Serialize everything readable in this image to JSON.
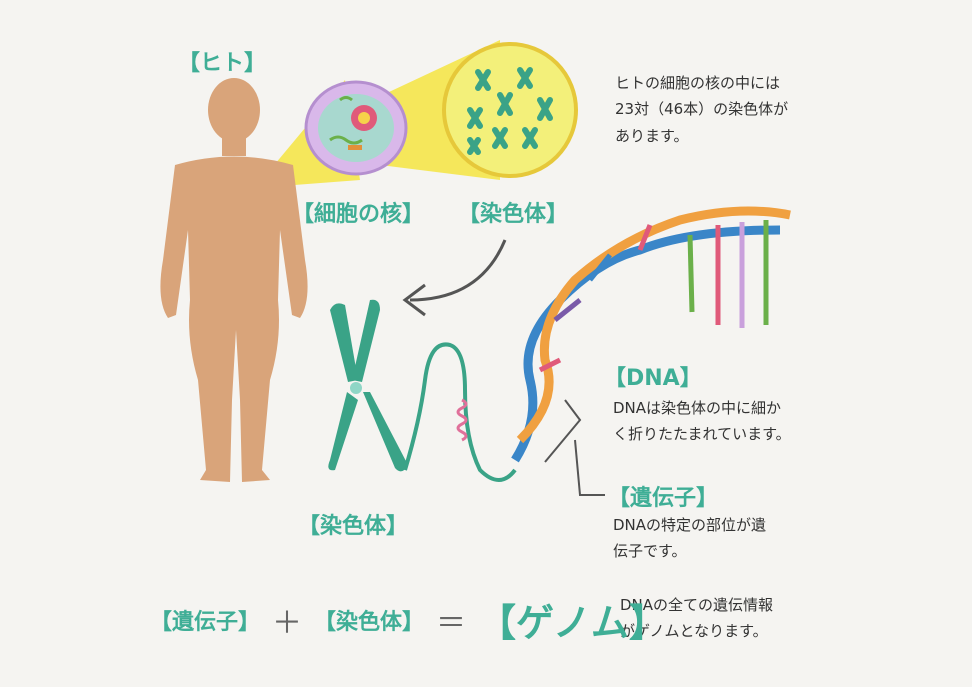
{
  "labels": {
    "human": "【ヒト】",
    "nucleus": "【細胞の核】",
    "chromosome_top": "【染色体】",
    "chromosome_bottom": "【染色体】",
    "dna": "【DNA】",
    "gene": "【遺伝子】"
  },
  "descriptions": {
    "chromosome": "ヒトの細胞の核の中には\n23対（46本）の染色体が\nあります。",
    "dna": "DNAは染色体の中に細か\nく折りたたまれています。",
    "gene": "DNAの特定の部位が遺\n伝子です。",
    "genome": "DNAの全ての遺伝情報\nがゲノムとなります。"
  },
  "formula": {
    "gene": "【遺伝子】",
    "plus": "＋",
    "chromosome": "【染色体】",
    "equals": "＝",
    "genome": "【ゲノム】"
  },
  "colors": {
    "accent": "#3fae96",
    "skin": "#d9a47a",
    "highlight": "#f5e54a",
    "cell": "#c9a0dc",
    "chromosome": "#3aa387"
  }
}
